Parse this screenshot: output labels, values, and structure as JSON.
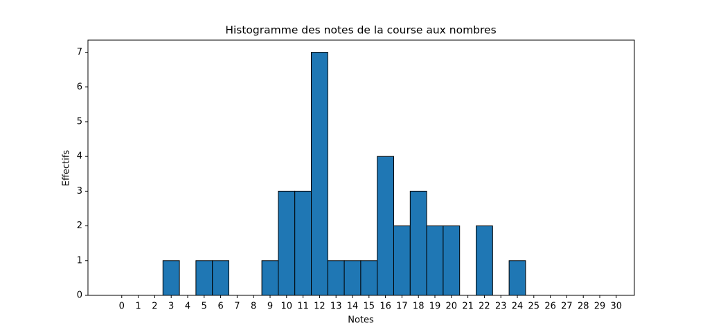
{
  "chart_data": {
    "type": "histogram",
    "title": "Histogramme des notes de la course aux nombres",
    "xlabel": "Notes",
    "ylabel": "Effectifs",
    "bins": [
      -0.5,
      0.5,
      1.5,
      2.5,
      3.5,
      4.5,
      5.5,
      6.5,
      7.5,
      8.5,
      9.5,
      10.5,
      11.5,
      12.5,
      13.5,
      14.5,
      15.5,
      16.5,
      17.5,
      18.5,
      19.5,
      20.5,
      21.5,
      22.5,
      23.5,
      24.5,
      25.5,
      26.5,
      27.5,
      28.5,
      29.5,
      30.5
    ],
    "values": [
      0,
      0,
      0,
      1,
      0,
      1,
      1,
      0,
      0,
      1,
      3,
      3,
      7,
      1,
      1,
      1,
      4,
      2,
      3,
      2,
      2,
      0,
      2,
      0,
      1,
      0,
      0,
      0,
      0,
      0,
      0
    ],
    "color": "#1f77b4",
    "edgecolor": "#000000",
    "xlim": [
      -2.05,
      31.1
    ],
    "xticks": [
      0,
      1,
      2,
      3,
      4,
      5,
      6,
      7,
      8,
      9,
      10,
      11,
      12,
      13,
      14,
      15,
      16,
      17,
      18,
      19,
      20,
      21,
      22,
      23,
      24,
      25,
      26,
      27,
      28,
      29,
      30
    ],
    "ylim": [
      0,
      7.35
    ],
    "yticks": [
      0,
      1,
      2,
      3,
      4,
      5,
      6,
      7
    ],
    "grid": false
  }
}
